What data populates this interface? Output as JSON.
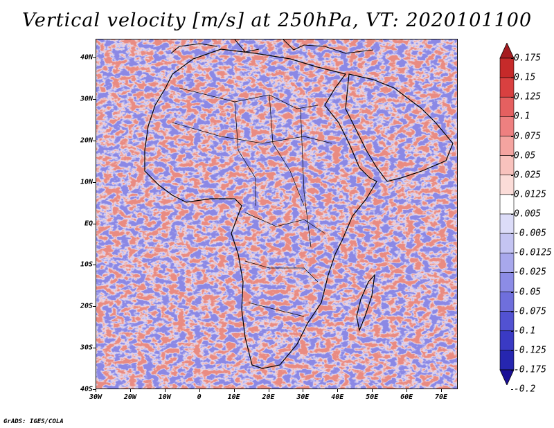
{
  "title": "Vertical velocity [m/s] at 250hPa, VT: 2020101100",
  "footer": "GrADS: IGES/COLA",
  "lat_labels": [
    "40N",
    "30N",
    "20N",
    "10N",
    "EQ",
    "10S",
    "20S",
    "30S",
    "40S"
  ],
  "lon_labels": [
    "30W",
    "20W",
    "10W",
    "0",
    "10E",
    "20E",
    "30E",
    "40E",
    "50E",
    "60E",
    "70E"
  ],
  "colorbar": {
    "labels": [
      "0.175",
      "0.15",
      "0.125",
      "0.1",
      "0.075",
      "0.05",
      "0.025",
      "0.0125",
      "0.005",
      "-0.005",
      "-0.0125",
      "-0.025",
      "-0.05",
      "-0.075",
      "-0.1",
      "-0.125",
      "-0.175",
      "-0.2"
    ],
    "colors": [
      "#a51c20",
      "#c62a2a",
      "#d94040",
      "#e56060",
      "#ee8080",
      "#f4a4a0",
      "#f8c2bd",
      "#fbdcd8",
      "#ffffff",
      "#dcdcf8",
      "#c4c4f2",
      "#a8a8ec",
      "#8c8ce6",
      "#6f6fdc",
      "#5252d2",
      "#3a3ac4",
      "#2626b0",
      "#1a0f96"
    ]
  },
  "map_colors": {
    "positive": "#e9867c",
    "negative": "#8a88e6",
    "neutral": "#f3f2fb"
  }
}
